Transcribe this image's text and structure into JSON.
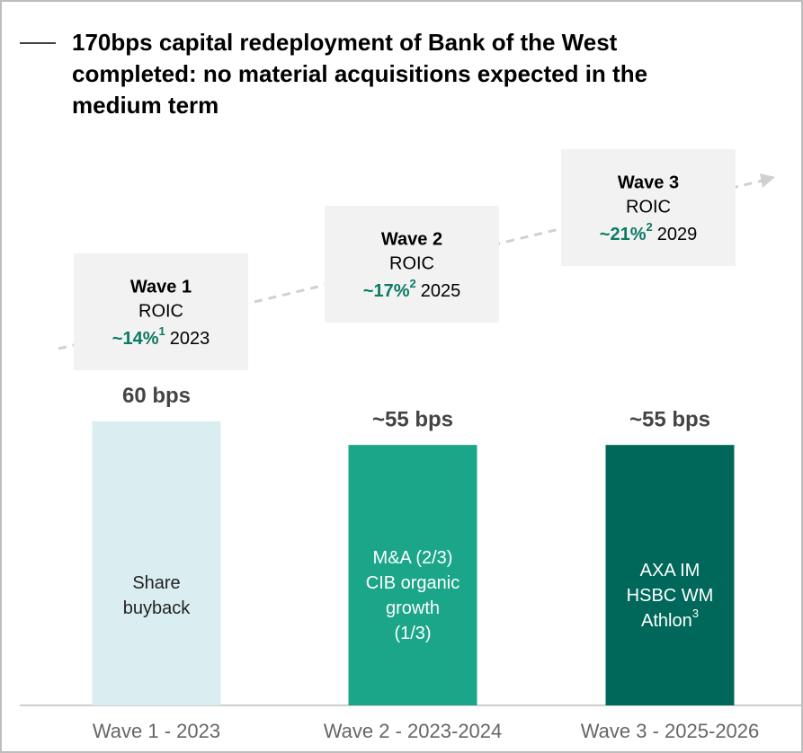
{
  "chart_data": {
    "type": "bar",
    "title_lines": [
      "170bps capital redeployment of Bank of the West",
      "completed: no material acquisitions expected in the",
      "medium term"
    ],
    "categories": [
      "Wave 1 - 2023",
      "Wave 2 - 2023-2024",
      "Wave 3 - 2025-2026"
    ],
    "values": [
      60,
      55,
      55
    ],
    "value_labels": [
      "60 bps",
      "~55 bps",
      "~55 bps"
    ],
    "colors": [
      "#daeef1",
      "#1ba68a",
      "#00685a"
    ],
    "bar_labels": [
      {
        "lines": [
          "Share",
          "buyback"
        ],
        "color": "#222222"
      },
      {
        "lines": [
          "M&A (2/3)",
          "CIB organic",
          "growth",
          "(1/3)"
        ],
        "color": "#ffffff"
      },
      {
        "lines": [
          "AXA IM",
          "HSBC WM",
          "Athlon"
        ],
        "note": "3",
        "color": "#ffffff"
      }
    ],
    "waves": [
      {
        "title": "Wave 1",
        "metric": "ROIC",
        "value": "~14%",
        "note": "1",
        "year": "2023"
      },
      {
        "title": "Wave 2",
        "metric": "ROIC",
        "value": "~17%",
        "note": "2",
        "year": "2025"
      },
      {
        "title": "Wave 3",
        "metric": "ROIC",
        "value": "~21%",
        "note": "2",
        "year": "2029"
      }
    ]
  }
}
